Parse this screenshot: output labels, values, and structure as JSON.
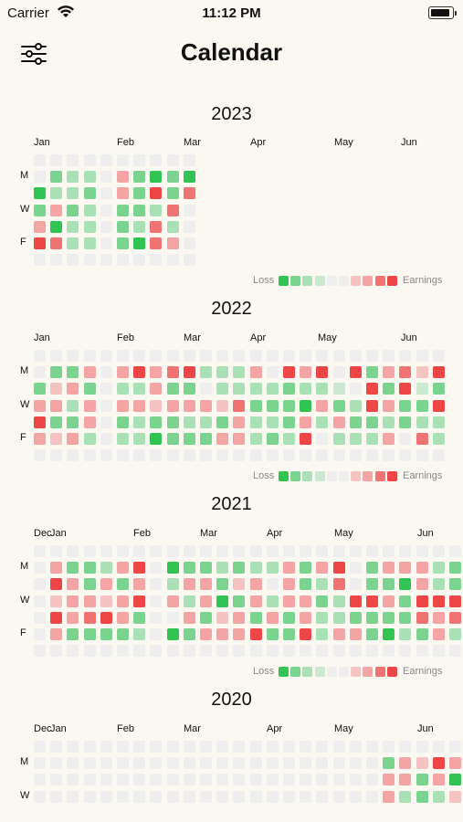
{
  "status_bar": {
    "carrier": "Carrier",
    "time": "11:12 PM"
  },
  "nav": {
    "title": "Calendar",
    "filter_icon": "sliders-icon"
  },
  "legend": {
    "loss_label": "Loss",
    "earnings_label": "Earnings"
  },
  "colors": {
    "empty": "#eeeeee",
    "loss": [
      "#31c452",
      "#7ad48f",
      "#a9e0b5",
      "#cbe8d0"
    ],
    "earn": [
      "#f6c3c3",
      "#f4a4a4",
      "#f07373",
      "#ee4646"
    ]
  },
  "day_labels": [
    "M",
    "W",
    "F"
  ],
  "years": [
    {
      "year": "2023",
      "months": [
        "Jan",
        "Feb",
        "Mar",
        "Apr",
        "May",
        "Jun"
      ],
      "grid": [
        [
          0,
          0,
          0,
          0,
          0,
          0,
          0,
          0,
          0,
          0
        ],
        [
          0,
          2,
          3,
          3,
          0,
          6,
          2,
          1,
          2,
          1
        ],
        [
          1,
          3,
          3,
          2,
          0,
          6,
          2,
          8,
          2,
          7
        ],
        [
          2,
          6,
          2,
          3,
          0,
          2,
          2,
          3,
          7,
          0
        ],
        [
          6,
          1,
          3,
          3,
          0,
          2,
          3,
          7,
          3,
          0
        ],
        [
          8,
          7,
          3,
          3,
          0,
          2,
          1,
          7,
          6,
          0
        ],
        [
          0,
          0,
          0,
          0,
          0,
          0,
          0,
          0,
          0,
          0
        ]
      ]
    },
    {
      "year": "2022",
      "months": [
        "Jan",
        "Feb",
        "Mar",
        "Apr",
        "May",
        "Jun"
      ],
      "grid": [
        [
          0,
          0,
          0,
          0,
          0,
          0,
          0,
          0,
          0,
          0,
          0,
          0,
          0,
          0,
          0,
          0,
          0,
          0,
          0,
          0,
          0,
          0,
          0,
          0,
          0
        ],
        [
          0,
          2,
          2,
          6,
          0,
          6,
          8,
          6,
          7,
          8,
          3,
          3,
          3,
          6,
          0,
          8,
          6,
          8,
          0,
          8,
          2,
          6,
          7,
          5,
          8
        ],
        [
          2,
          5,
          6,
          2,
          0,
          3,
          3,
          6,
          2,
          2,
          0,
          3,
          3,
          3,
          3,
          2,
          3,
          3,
          4,
          0,
          8,
          2,
          8,
          4,
          2
        ],
        [
          6,
          6,
          3,
          6,
          0,
          6,
          6,
          5,
          6,
          6,
          6,
          5,
          7,
          2,
          2,
          2,
          1,
          6,
          2,
          3,
          8,
          6,
          2,
          2,
          8
        ],
        [
          8,
          2,
          2,
          6,
          0,
          2,
          3,
          2,
          2,
          3,
          3,
          2,
          6,
          3,
          3,
          2,
          6,
          3,
          6,
          2,
          2,
          3,
          2,
          3,
          3
        ],
        [
          6,
          5,
          6,
          3,
          0,
          3,
          3,
          1,
          2,
          2,
          2,
          6,
          6,
          3,
          2,
          3,
          8,
          0,
          3,
          3,
          3,
          6,
          0,
          7,
          3
        ],
        [
          0,
          0,
          0,
          0,
          0,
          0,
          0,
          0,
          0,
          0,
          0,
          0,
          0,
          0,
          0,
          0,
          0,
          0,
          0,
          0,
          0,
          0,
          0,
          0,
          0
        ]
      ]
    },
    {
      "year": "2021",
      "months": [
        "Dec",
        "Jan",
        "Feb",
        "Mar",
        "Apr",
        "May",
        "Jun"
      ],
      "grid": [
        [
          0,
          0,
          0,
          0,
          0,
          0,
          0,
          0,
          0,
          0,
          0,
          0,
          0,
          0,
          0,
          0,
          0,
          0,
          0,
          0,
          0,
          0,
          0,
          0,
          0,
          0
        ],
        [
          0,
          6,
          2,
          2,
          3,
          6,
          8,
          0,
          1,
          2,
          2,
          3,
          2,
          3,
          3,
          6,
          2,
          6,
          8,
          0,
          2,
          6,
          6,
          6,
          3,
          2
        ],
        [
          0,
          8,
          6,
          2,
          6,
          2,
          6,
          0,
          3,
          6,
          6,
          2,
          5,
          6,
          0,
          6,
          2,
          3,
          7,
          0,
          2,
          2,
          1,
          6,
          3,
          2
        ],
        [
          0,
          5,
          6,
          6,
          5,
          6,
          8,
          0,
          6,
          3,
          6,
          1,
          2,
          6,
          3,
          6,
          6,
          2,
          3,
          8,
          8,
          6,
          2,
          8,
          8,
          8
        ],
        [
          0,
          8,
          6,
          7,
          8,
          6,
          2,
          0,
          0,
          6,
          2,
          5,
          6,
          2,
          6,
          2,
          6,
          3,
          3,
          2,
          2,
          2,
          2,
          7,
          6,
          7
        ],
        [
          0,
          6,
          2,
          2,
          2,
          2,
          3,
          0,
          1,
          2,
          6,
          6,
          6,
          8,
          2,
          2,
          8,
          3,
          6,
          6,
          2,
          1,
          3,
          2,
          6,
          3
        ],
        [
          0,
          0,
          0,
          0,
          0,
          0,
          0,
          0,
          0,
          0,
          0,
          0,
          0,
          0,
          0,
          0,
          0,
          0,
          0,
          0,
          0,
          0,
          0,
          0,
          0,
          0
        ]
      ]
    },
    {
      "year": "2020",
      "months": [
        "Dec",
        "Jan",
        "Feb",
        "Mar",
        "Apr",
        "May",
        "Jun"
      ],
      "grid": [
        [
          0,
          0,
          0,
          0,
          0,
          0,
          0,
          0,
          0,
          0,
          0,
          0,
          0,
          0,
          0,
          0,
          0,
          0,
          0,
          0,
          0,
          0,
          0,
          0,
          0,
          0
        ],
        [
          0,
          0,
          0,
          0,
          0,
          0,
          0,
          0,
          0,
          0,
          0,
          0,
          0,
          0,
          0,
          0,
          0,
          0,
          0,
          0,
          0,
          2,
          6,
          5,
          8,
          6
        ],
        [
          0,
          0,
          0,
          0,
          0,
          0,
          0,
          0,
          0,
          0,
          0,
          0,
          0,
          0,
          0,
          0,
          0,
          0,
          0,
          0,
          0,
          6,
          6,
          2,
          6,
          1
        ],
        [
          0,
          0,
          0,
          0,
          0,
          0,
          0,
          0,
          0,
          0,
          0,
          0,
          0,
          0,
          0,
          0,
          0,
          0,
          0,
          0,
          0,
          6,
          3,
          2,
          3,
          5
        ]
      ]
    }
  ]
}
